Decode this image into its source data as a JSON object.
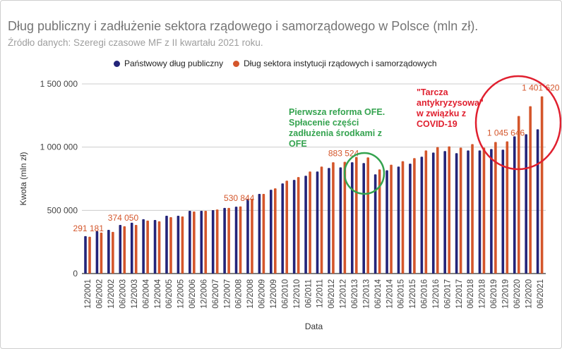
{
  "chart_data": {
    "type": "bar",
    "title": "Dług publiczny i zadłużenie sektora rządowego i samorządowego w Polsce (mln zł).",
    "subtitle": "Źródło danych: Szeregi czasowe MF z II kwartału 2021 roku.",
    "xlabel": "Data",
    "ylabel": "Kwota (mln zł)",
    "ylim": [
      0,
      1500000
    ],
    "yticks": [
      0,
      500000,
      1000000,
      1500000
    ],
    "ytick_labels": [
      "0",
      "500 000",
      "1 000 000",
      "1 500 000"
    ],
    "grid": true,
    "legend_position": "top",
    "categories": [
      "12/2001",
      "06/2002",
      "12/2002",
      "06/2003",
      "12/2003",
      "06/2004",
      "12/2004",
      "06/2005",
      "12/2005",
      "06/2006",
      "12/2006",
      "06/2007",
      "12/2007",
      "06/2008",
      "12/2008",
      "06/2009",
      "12/2009",
      "06/2010",
      "12/2010",
      "06/2011",
      "12/2011",
      "06/2012",
      "12/2012",
      "06/2013",
      "12/2013",
      "06/2014",
      "12/2014",
      "06/2015",
      "12/2015",
      "06/2016",
      "12/2016",
      "06/2017",
      "12/2017",
      "06/2018",
      "12/2018",
      "06/2019",
      "12/2019",
      "06/2020",
      "12/2020",
      "06/2021"
    ],
    "series": [
      {
        "name": "Państwowy dług publiczny",
        "color": "#232479",
        "values": [
          296000,
          335000,
          346000,
          385000,
          402000,
          430000,
          424000,
          457000,
          457000,
          496000,
          496000,
          502000,
          519000,
          529000,
          591000,
          630000,
          663000,
          713000,
          741000,
          774000,
          807000,
          835000,
          840000,
          880000,
          874000,
          785000,
          817000,
          846000,
          869000,
          924000,
          957000,
          969000,
          952000,
          974000,
          974000,
          985000,
          980000,
          1085000,
          1102000,
          1141000
        ]
      },
      {
        "name": "Dług sektora instytucji rządowych i samorządowych",
        "color": "#d4562b",
        "values": [
          291181,
          324000,
          330000,
          374050,
          385000,
          419000,
          413000,
          446000,
          452000,
          491000,
          496000,
          507000,
          519000,
          530844,
          591000,
          630000,
          674000,
          735000,
          763000,
          807000,
          846000,
          880000,
          883524,
          922000,
          919000,
          824000,
          861000,
          889000,
          913000,
          974000,
          1000000,
          1006000,
          996000,
          1024000,
          996000,
          1041000,
          1045646,
          1246000,
          1324000,
          1401620
        ]
      }
    ],
    "data_labels": [
      {
        "category": "12/2001",
        "series": 1,
        "text": "291 181"
      },
      {
        "category": "06/2003",
        "series": 1,
        "text": "374 050"
      },
      {
        "category": "06/2008",
        "series": 1,
        "text": "530 844"
      },
      {
        "category": "12/2012",
        "series": 1,
        "text": "883 524"
      },
      {
        "category": "12/2019",
        "series": 1,
        "text": "1 045 646"
      },
      {
        "category": "06/2021",
        "series": 1,
        "text": "1 401 620"
      }
    ],
    "annotations": [
      {
        "lines": [
          "Pierwsza reforma OFE.",
          "Spłacenie części",
          "zadłużenia środkami z",
          "OFE"
        ],
        "color": "#34a34f",
        "near": "06/2013"
      },
      {
        "lines": [
          "\"Tarcza",
          "antykryzysowa\"",
          "w związku z",
          "COVID-19"
        ],
        "color": "#e0202f",
        "near": "06/2020"
      }
    ]
  }
}
